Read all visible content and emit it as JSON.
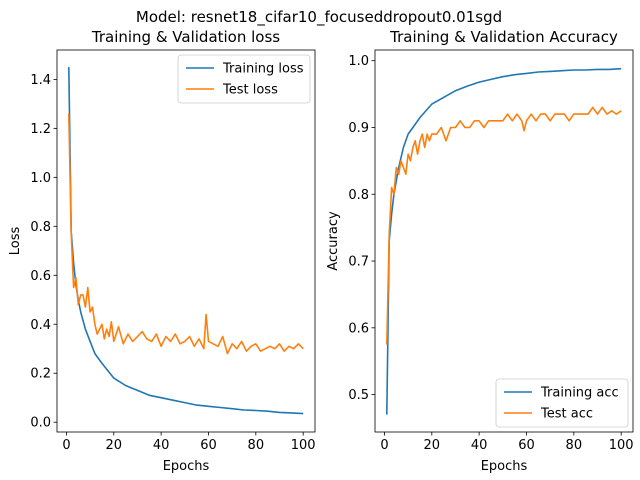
{
  "figure": {
    "suptitle": "Model: resnet18_cifar10_focuseddropout0.01sgd"
  },
  "colors": {
    "train": "#1f77b4",
    "test": "#ff7f0e"
  },
  "chart_data": [
    {
      "type": "line",
      "title": "Training & Validation loss",
      "xlabel": "Epochs",
      "ylabel": "Loss",
      "xlim": [
        -4,
        105
      ],
      "ylim": [
        -0.04,
        1.52
      ],
      "xticks": [
        0,
        20,
        40,
        60,
        80,
        100
      ],
      "yticks": [
        0.0,
        0.2,
        0.4,
        0.6,
        0.8,
        1.0,
        1.2,
        1.4
      ],
      "ytick_labels": [
        "0.0",
        "0.2",
        "0.4",
        "0.6",
        "0.8",
        "1.0",
        "1.2",
        "1.4"
      ],
      "legend_position": "top-right",
      "series": [
        {
          "name": "Training loss",
          "color_key": "train",
          "x": [
            1,
            2,
            3,
            4,
            5,
            6,
            8,
            10,
            12,
            15,
            20,
            25,
            30,
            35,
            40,
            45,
            50,
            55,
            60,
            65,
            70,
            75,
            80,
            85,
            90,
            95,
            100
          ],
          "y": [
            1.45,
            0.78,
            0.65,
            0.56,
            0.5,
            0.45,
            0.38,
            0.33,
            0.28,
            0.24,
            0.18,
            0.15,
            0.13,
            0.11,
            0.1,
            0.09,
            0.08,
            0.07,
            0.065,
            0.06,
            0.055,
            0.05,
            0.048,
            0.045,
            0.04,
            0.038,
            0.035
          ]
        },
        {
          "name": "Test loss",
          "color_key": "test",
          "x": [
            1,
            2,
            3,
            4,
            5,
            6,
            7,
            8,
            9,
            10,
            11,
            12,
            13,
            14,
            15,
            16,
            17,
            18,
            19,
            20,
            22,
            24,
            26,
            28,
            30,
            32,
            34,
            36,
            38,
            40,
            42,
            44,
            46,
            48,
            50,
            52,
            54,
            56,
            58,
            59,
            60,
            62,
            64,
            66,
            68,
            70,
            72,
            74,
            76,
            78,
            80,
            82,
            84,
            86,
            88,
            90,
            92,
            94,
            96,
            98,
            100
          ],
          "y": [
            1.26,
            0.77,
            0.55,
            0.59,
            0.48,
            0.52,
            0.52,
            0.47,
            0.55,
            0.45,
            0.47,
            0.4,
            0.36,
            0.38,
            0.4,
            0.34,
            0.38,
            0.35,
            0.41,
            0.33,
            0.39,
            0.32,
            0.36,
            0.33,
            0.35,
            0.37,
            0.34,
            0.33,
            0.36,
            0.31,
            0.35,
            0.33,
            0.36,
            0.32,
            0.33,
            0.35,
            0.31,
            0.34,
            0.3,
            0.44,
            0.33,
            0.32,
            0.31,
            0.35,
            0.28,
            0.32,
            0.3,
            0.33,
            0.29,
            0.31,
            0.32,
            0.29,
            0.3,
            0.31,
            0.3,
            0.32,
            0.29,
            0.31,
            0.3,
            0.32,
            0.3
          ]
        }
      ]
    },
    {
      "type": "line",
      "title": "Training & Validation Accuracy",
      "xlabel": "Epochs",
      "ylabel": "Accuracy",
      "xlim": [
        -4,
        105
      ],
      "ylim": [
        0.444,
        1.016
      ],
      "xticks": [
        0,
        20,
        40,
        60,
        80,
        100
      ],
      "yticks": [
        0.5,
        0.6,
        0.7,
        0.8,
        0.9,
        1.0
      ],
      "ytick_labels": [
        "0.5",
        "0.6",
        "0.7",
        "0.8",
        "0.9",
        "1.0"
      ],
      "legend_position": "bottom-right",
      "series": [
        {
          "name": "Training acc",
          "color_key": "train",
          "x": [
            1,
            2,
            3,
            4,
            5,
            6,
            8,
            10,
            12,
            15,
            20,
            25,
            30,
            35,
            40,
            45,
            50,
            55,
            60,
            65,
            70,
            75,
            80,
            85,
            90,
            95,
            100
          ],
          "y": [
            0.47,
            0.73,
            0.77,
            0.8,
            0.82,
            0.84,
            0.87,
            0.89,
            0.9,
            0.915,
            0.935,
            0.945,
            0.955,
            0.962,
            0.968,
            0.972,
            0.976,
            0.979,
            0.981,
            0.983,
            0.984,
            0.985,
            0.986,
            0.986,
            0.987,
            0.987,
            0.988
          ]
        },
        {
          "name": "Test acc",
          "color_key": "test",
          "x": [
            1,
            2,
            3,
            4,
            5,
            6,
            7,
            8,
            9,
            10,
            11,
            12,
            13,
            14,
            15,
            16,
            17,
            18,
            19,
            20,
            22,
            24,
            26,
            28,
            30,
            32,
            34,
            36,
            38,
            40,
            42,
            44,
            46,
            48,
            50,
            52,
            54,
            56,
            58,
            59,
            60,
            62,
            64,
            66,
            68,
            70,
            72,
            74,
            76,
            78,
            80,
            82,
            84,
            86,
            88,
            90,
            92,
            94,
            96,
            98,
            100
          ],
          "y": [
            0.575,
            0.74,
            0.81,
            0.8,
            0.84,
            0.83,
            0.85,
            0.84,
            0.83,
            0.86,
            0.85,
            0.87,
            0.88,
            0.86,
            0.88,
            0.89,
            0.87,
            0.89,
            0.88,
            0.89,
            0.89,
            0.9,
            0.88,
            0.9,
            0.9,
            0.91,
            0.9,
            0.9,
            0.91,
            0.91,
            0.9,
            0.91,
            0.91,
            0.91,
            0.91,
            0.92,
            0.91,
            0.92,
            0.91,
            0.895,
            0.91,
            0.92,
            0.91,
            0.92,
            0.92,
            0.91,
            0.92,
            0.92,
            0.92,
            0.91,
            0.92,
            0.92,
            0.92,
            0.92,
            0.93,
            0.92,
            0.93,
            0.92,
            0.925,
            0.92,
            0.925
          ]
        }
      ]
    }
  ]
}
